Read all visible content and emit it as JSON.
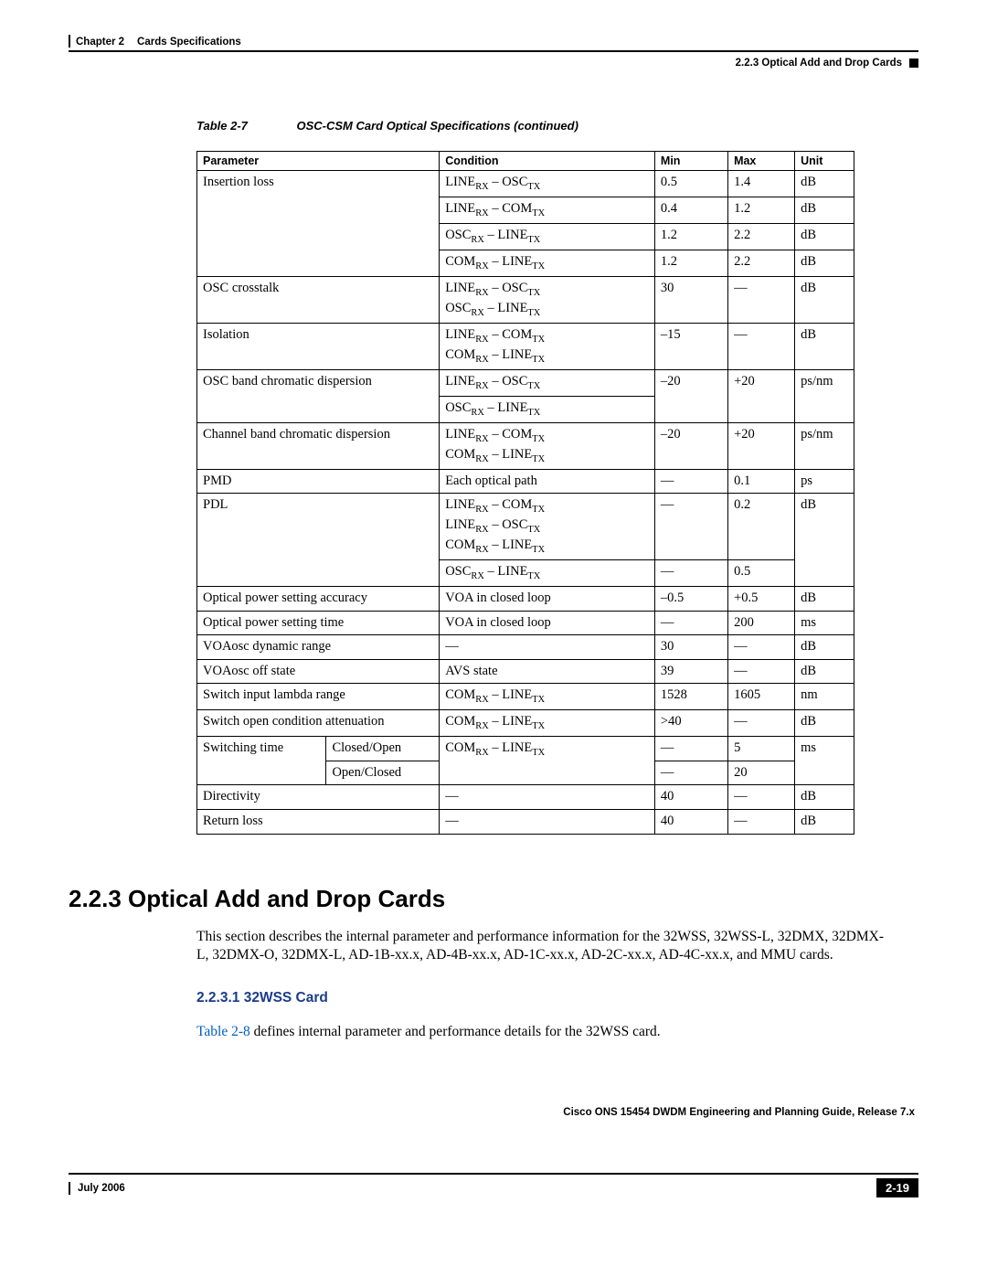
{
  "header": {
    "chapter": "Chapter 2",
    "chapter_title": "Cards Specifications",
    "section_ref": "2.2.3   Optical Add and Drop Cards"
  },
  "table": {
    "number": "Table 2-7",
    "title": "OSC-CSM Card Optical Specifications (continued)",
    "columns": {
      "c1": "Parameter",
      "c2": "Condition",
      "c3": "Min",
      "c4": "Max",
      "c5": "Unit"
    },
    "rows": {
      "r1": {
        "param": "Insertion loss",
        "cond": "LINE|RX| – OSC|TX|",
        "min": "0.5",
        "max": "1.4",
        "unit": "dB"
      },
      "r2": {
        "cond": "LINE|RX| – COM|TX|",
        "min": "0.4",
        "max": "1.2",
        "unit": "dB"
      },
      "r3": {
        "cond": "OSC|RX| – LINE|TX|",
        "min": "1.2",
        "max": "2.2",
        "unit": "dB"
      },
      "r4": {
        "cond": "COM|RX| – LINE|TX|",
        "min": "1.2",
        "max": "2.2",
        "unit": "dB"
      },
      "r5": {
        "param": "OSC crosstalk",
        "cond": "LINE|RX| – OSC|TX|\nOSC|RX| – LINE|TX|",
        "min": "30",
        "max": "—",
        "unit": "dB"
      },
      "r6": {
        "param": "Isolation",
        "cond": "LINE|RX| – COM|TX|\nCOM|RX| – LINE|TX|",
        "min": "–15",
        "max": "—",
        "unit": "dB"
      },
      "r7": {
        "param": "OSC band chromatic dispersion",
        "cond": "LINE|RX| – OSC|TX|",
        "min": "–20",
        "max": "+20",
        "unit": "ps/nm"
      },
      "r8": {
        "cond": "OSC|RX| – LINE|TX|"
      },
      "r9": {
        "param": "Channel band chromatic dispersion",
        "cond": "LINE|RX| – COM|TX|\nCOM|RX| – LINE|TX|",
        "min": "–20",
        "max": "+20",
        "unit": "ps/nm"
      },
      "r10": {
        "param": "PMD",
        "cond": "Each optical path",
        "min": "—",
        "max": "0.1",
        "unit": "ps"
      },
      "r11": {
        "param": "PDL",
        "cond": "LINE|RX| – COM|TX|\nLINE|RX| – OSC|TX|\nCOM|RX| – LINE|TX|",
        "min": "—",
        "max": "0.2",
        "unit": "dB"
      },
      "r12": {
        "cond": "OSC|RX| – LINE|TX|",
        "min": "—",
        "max": "0.5"
      },
      "r13": {
        "param": "Optical power setting accuracy",
        "cond": "VOA in closed loop",
        "min": "–0.5",
        "max": "+0.5",
        "unit": "dB"
      },
      "r14": {
        "param": "Optical power setting time",
        "cond": "VOA in closed loop",
        "min": "—",
        "max": "200",
        "unit": "ms"
      },
      "r15": {
        "param": "VOAosc dynamic range",
        "cond": "—",
        "min": "30",
        "max": "—",
        "unit": "dB"
      },
      "r16": {
        "param": "VOAosc off state",
        "cond": "AVS state",
        "min": "39",
        "max": "—",
        "unit": "dB"
      },
      "r17": {
        "param": "Switch input lambda range",
        "cond": "COM|RX| – LINE|TX|",
        "min": "1528",
        "max": "1605",
        "unit": "nm"
      },
      "r18": {
        "param": "Switch open condition attenuation",
        "cond": "COM|RX| – LINE|TX|",
        "min": ">40",
        "max": "—",
        "unit": "dB"
      },
      "r19": {
        "param": "Switching time",
        "sub": "Closed/Open",
        "cond": "COM|RX| – LINE|TX|",
        "min": "—",
        "max": "5",
        "unit": "ms"
      },
      "r20": {
        "sub": "Open/Closed",
        "min": "—",
        "max": "20"
      },
      "r21": {
        "param": "Directivity",
        "cond": "—",
        "min": "40",
        "max": "—",
        "unit": "dB"
      },
      "r22": {
        "param": "Return loss",
        "cond": "—",
        "min": "40",
        "max": "—",
        "unit": "dB"
      }
    }
  },
  "section": {
    "heading": "2.2.3  Optical Add and Drop Cards",
    "para": "This section describes the internal parameter and performance information for the 32WSS, 32WSS-L, 32DMX, 32DMX-L, 32DMX-O, 32DMX-L, AD-1B-xx.x, AD-4B-xx.x, AD-1C-xx.x, AD-2C-xx.x, AD-4C-xx.x, and MMU cards.",
    "sub_heading": "2.2.3.1  32WSS Card",
    "sub_link": "Table 2-8",
    "sub_rest": " defines internal parameter and performance details for the 32WSS card."
  },
  "footer": {
    "doc_title": "Cisco ONS 15454 DWDM Engineering and Planning Guide, Release 7.x",
    "date": "July 2006",
    "page": "2-19"
  }
}
